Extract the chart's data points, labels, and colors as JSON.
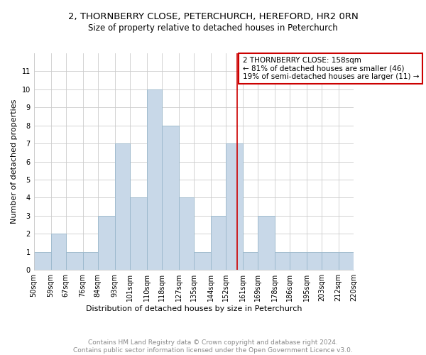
{
  "title": "2, THORNBERRY CLOSE, PETERCHURCH, HEREFORD, HR2 0RN",
  "subtitle": "Size of property relative to detached houses in Peterchurch",
  "xlabel": "Distribution of detached houses by size in Peterchurch",
  "ylabel": "Number of detached properties",
  "footer_line1": "Contains HM Land Registry data © Crown copyright and database right 2024.",
  "footer_line2": "Contains public sector information licensed under the Open Government Licence v3.0.",
  "bins": [
    50,
    59,
    67,
    76,
    84,
    93,
    101,
    110,
    118,
    127,
    135,
    144,
    152,
    161,
    169,
    178,
    186,
    195,
    203,
    212,
    220
  ],
  "counts": [
    1,
    2,
    1,
    1,
    3,
    7,
    4,
    10,
    8,
    4,
    1,
    3,
    7,
    1,
    3,
    1,
    1,
    1,
    1,
    1
  ],
  "bar_color": "#c8d8e8",
  "bar_edge_color": "#9ab8cc",
  "vline_x": 158,
  "vline_color": "#cc0000",
  "annotation_box_color": "#cc0000",
  "annotation_lines": [
    "2 THORNBERRY CLOSE: 158sqm",
    "← 81% of detached houses are smaller (46)",
    "19% of semi-detached houses are larger (11) →"
  ],
  "ylim": [
    0,
    12
  ],
  "yticks": [
    0,
    1,
    2,
    3,
    4,
    5,
    6,
    7,
    8,
    9,
    10,
    11,
    12
  ],
  "tick_labels": [
    "50sqm",
    "59sqm",
    "67sqm",
    "76sqm",
    "84sqm",
    "93sqm",
    "101sqm",
    "110sqm",
    "118sqm",
    "127sqm",
    "135sqm",
    "144sqm",
    "152sqm",
    "161sqm",
    "169sqm",
    "178sqm",
    "186sqm",
    "195sqm",
    "203sqm",
    "212sqm",
    "220sqm"
  ],
  "grid_color": "#cccccc",
  "background_color": "#ffffff",
  "title_fontsize": 9.5,
  "subtitle_fontsize": 8.5,
  "axis_label_fontsize": 8,
  "tick_fontsize": 7,
  "annotation_fontsize": 7.5,
  "footer_fontsize": 6.5
}
